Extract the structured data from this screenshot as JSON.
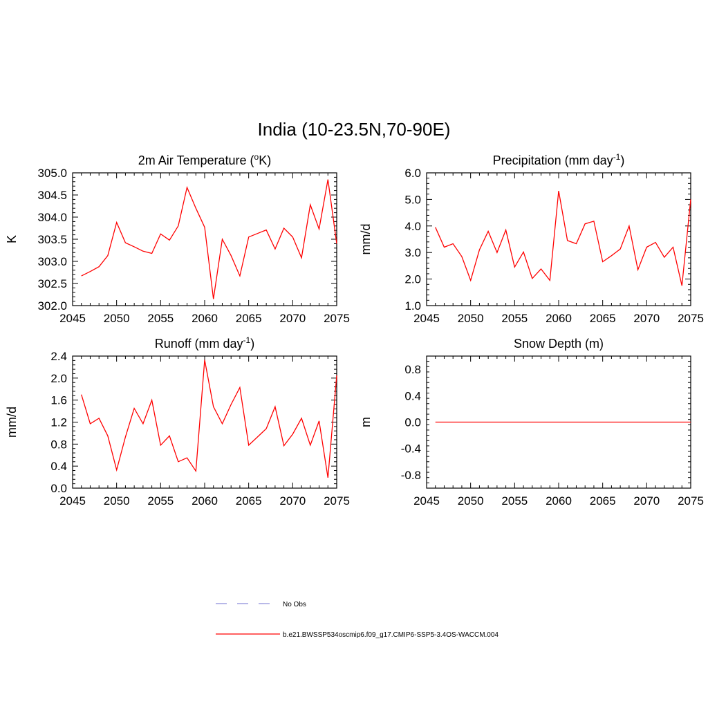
{
  "figure": {
    "title": "India (10-23.5N,70-90E)"
  },
  "chart_data": [
    {
      "type": "line",
      "title_main": "2m Air Temperature (",
      "title_sup_pre": "o",
      "title_main2": "K)",
      "ylabel": "K",
      "xlim": [
        2045,
        2075
      ],
      "ylim": [
        302.0,
        305.0
      ],
      "xticks": [
        "2045",
        "2050",
        "2055",
        "2060",
        "2065",
        "2070",
        "2075"
      ],
      "yticks": [
        "302.0",
        "302.5",
        "303.0",
        "303.5",
        "304.0",
        "304.5",
        "305.0"
      ],
      "ytick_values": [
        302.0,
        302.5,
        303.0,
        303.5,
        304.0,
        304.5,
        305.0
      ],
      "x": [
        2046,
        2047,
        2048,
        2049,
        2050,
        2051,
        2052,
        2053,
        2054,
        2055,
        2056,
        2057,
        2058,
        2059,
        2060,
        2061,
        2062,
        2063,
        2064,
        2065,
        2066,
        2067,
        2068,
        2069,
        2070,
        2071,
        2072,
        2073,
        2074,
        2075
      ],
      "series": [
        {
          "name": "b.e21.BWSSP534oscmip6.f09_g17.CMIP6-SSP5-3.4OS-WACCM.004",
          "color": "#ff0000",
          "values": [
            302.67,
            302.77,
            302.88,
            303.13,
            303.88,
            303.42,
            303.33,
            303.23,
            303.18,
            303.62,
            303.48,
            303.8,
            304.67,
            304.2,
            303.77,
            302.15,
            303.5,
            303.13,
            302.67,
            303.55,
            303.63,
            303.71,
            303.28,
            303.75,
            303.55,
            303.08,
            304.28,
            303.73,
            304.85,
            303.4
          ]
        }
      ]
    },
    {
      "type": "line",
      "title_main": "Precipitation (mm day",
      "title_sup": "-1",
      "title_end": ")",
      "ylabel": "mm/d",
      "xlim": [
        2045,
        2075
      ],
      "ylim": [
        1.0,
        6.0
      ],
      "xticks": [
        "2045",
        "2050",
        "2055",
        "2060",
        "2065",
        "2070",
        "2075"
      ],
      "yticks": [
        "1.0",
        "2.0",
        "3.0",
        "4.0",
        "5.0",
        "6.0"
      ],
      "ytick_values": [
        1.0,
        2.0,
        3.0,
        4.0,
        5.0,
        6.0
      ],
      "x": [
        2046,
        2047,
        2048,
        2049,
        2050,
        2051,
        2052,
        2053,
        2054,
        2055,
        2056,
        2057,
        2058,
        2059,
        2060,
        2061,
        2062,
        2063,
        2064,
        2065,
        2066,
        2067,
        2068,
        2069,
        2070,
        2071,
        2072,
        2073,
        2074,
        2075
      ],
      "series": [
        {
          "name": "b.e21.BWSSP534oscmip6.f09_g17.CMIP6-SSP5-3.4OS-WACCM.004",
          "color": "#ff0000",
          "values": [
            3.95,
            3.2,
            3.33,
            2.85,
            1.95,
            3.1,
            3.8,
            3.0,
            3.85,
            2.45,
            3.02,
            2.02,
            2.38,
            1.95,
            5.32,
            3.45,
            3.33,
            4.08,
            4.18,
            2.65,
            2.88,
            3.13,
            4.0,
            2.35,
            3.2,
            3.38,
            2.82,
            3.2,
            1.75,
            5.0
          ]
        }
      ]
    },
    {
      "type": "line",
      "title_main": "Runoff (mm day",
      "title_sup": "-1",
      "title_end": ")",
      "ylabel": "mm/d",
      "xlim": [
        2045,
        2075
      ],
      "ylim": [
        0.0,
        2.4
      ],
      "xticks": [
        "2045",
        "2050",
        "2055",
        "2060",
        "2065",
        "2070",
        "2075"
      ],
      "yticks": [
        "0.0",
        "0.4",
        "0.8",
        "1.2",
        "1.6",
        "2.0",
        "2.4"
      ],
      "ytick_values": [
        0.0,
        0.4,
        0.8,
        1.2,
        1.6,
        2.0,
        2.4
      ],
      "x": [
        2046,
        2047,
        2048,
        2049,
        2050,
        2051,
        2052,
        2053,
        2054,
        2055,
        2056,
        2057,
        2058,
        2059,
        2060,
        2061,
        2062,
        2063,
        2064,
        2065,
        2066,
        2067,
        2068,
        2069,
        2070,
        2071,
        2072,
        2073,
        2074,
        2075
      ],
      "series": [
        {
          "name": "b.e21.BWSSP534oscmip6.f09_g17.CMIP6-SSP5-3.4OS-WACCM.004",
          "color": "#ff0000",
          "values": [
            1.7,
            1.17,
            1.27,
            0.95,
            0.33,
            0.93,
            1.45,
            1.17,
            1.6,
            0.78,
            0.95,
            0.48,
            0.55,
            0.31,
            2.33,
            1.48,
            1.17,
            1.52,
            1.83,
            0.78,
            0.93,
            1.08,
            1.48,
            0.77,
            0.98,
            1.27,
            0.78,
            1.22,
            0.19,
            2.05
          ]
        }
      ]
    },
    {
      "type": "line",
      "title_main": "Snow Depth (m)",
      "ylabel": "m",
      "xlim": [
        2045,
        2075
      ],
      "ylim": [
        -1.0,
        1.0
      ],
      "xticks": [
        "2045",
        "2050",
        "2055",
        "2060",
        "2065",
        "2070",
        "2075"
      ],
      "yticks": [
        "-0.8",
        "-0.4",
        "0.0",
        "0.4",
        "0.8"
      ],
      "ytick_values": [
        -0.8,
        -0.4,
        0.0,
        0.4,
        0.8
      ],
      "x": [
        2046,
        2047,
        2048,
        2049,
        2050,
        2051,
        2052,
        2053,
        2054,
        2055,
        2056,
        2057,
        2058,
        2059,
        2060,
        2061,
        2062,
        2063,
        2064,
        2065,
        2066,
        2067,
        2068,
        2069,
        2070,
        2071,
        2072,
        2073,
        2074,
        2075
      ],
      "series": [
        {
          "name": "b.e21.BWSSP534oscmip6.f09_g17.CMIP6-SSP5-3.4OS-WACCM.004",
          "color": "#ff0000",
          "values": [
            0,
            0,
            0,
            0,
            0,
            0,
            0,
            0,
            0,
            0,
            0,
            0,
            0,
            0,
            0,
            0,
            0,
            0,
            0,
            0,
            0,
            0,
            0,
            0,
            0,
            0,
            0,
            0,
            0,
            0
          ]
        }
      ]
    }
  ],
  "legend": [
    {
      "label": "No Obs",
      "color": "#8c8cd9",
      "style": "dashed"
    },
    {
      "label": "b.e21.BWSSP534oscmip6.f09_g17.CMIP6-SSP5-3.4OS-WACCM.004",
      "color": "#ff0000",
      "style": "solid"
    }
  ]
}
